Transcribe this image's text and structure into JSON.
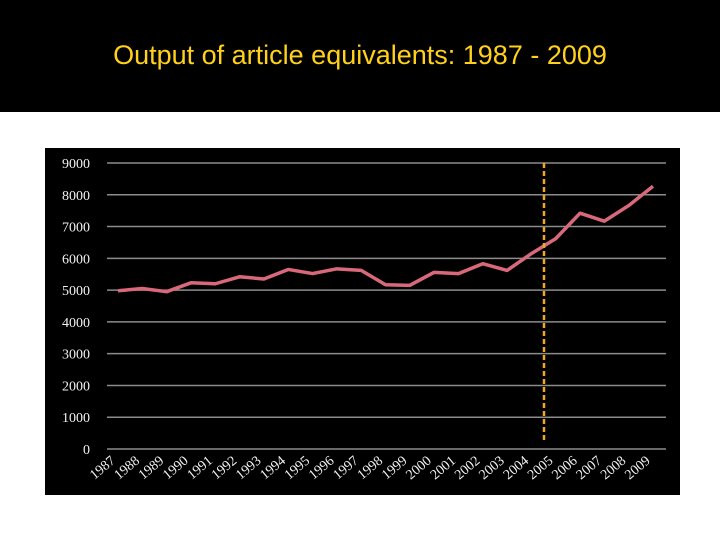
{
  "chart_data": {
    "type": "line",
    "title": "Output of article equivalents: 1987 - 2009",
    "categories": [
      "1987",
      "1988",
      "1989",
      "1990",
      "1991",
      "1992",
      "1993",
      "1994",
      "1995",
      "1996",
      "1997",
      "1998",
      "1999",
      "2000",
      "2001",
      "2002",
      "2003",
      "2004",
      "2005",
      "2006",
      "2007",
      "2008",
      "2009"
    ],
    "values": [
      4980,
      5050,
      4950,
      5230,
      5200,
      5420,
      5350,
      5650,
      5520,
      5670,
      5620,
      5170,
      5150,
      5560,
      5520,
      5830,
      5620,
      6150,
      6620,
      7420,
      7170,
      7660,
      8270
    ],
    "color": "#d9697a",
    "ylim": [
      0,
      9000
    ],
    "yticks": [
      0,
      1000,
      2000,
      3000,
      4000,
      5000,
      6000,
      7000,
      8000,
      9000
    ],
    "grid": true
  }
}
